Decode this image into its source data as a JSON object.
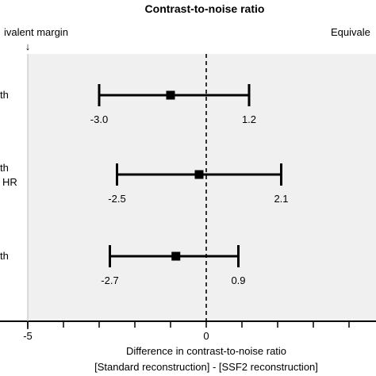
{
  "chart_data": {
    "type": "forest",
    "title": "Contrast-to-noise ratio",
    "xlabel_line1": "Difference in contrast-to-noise ratio",
    "xlabel_line2": "[Standard reconstruction] - [SSF2 reconstruction]",
    "margin_left_label": "ivalent margin",
    "margin_left_arrow": "↓",
    "margin_right_label": "Equivale",
    "xlim": [
      -5,
      4.5
    ],
    "xticks": [
      -5,
      0
    ],
    "tick_labels": [
      "-5",
      "0"
    ],
    "reference_line": 0,
    "rows": [
      {
        "row_label_1": "th",
        "row_label_2": "",
        "estimate": -1.0,
        "lower": -3.0,
        "upper": 1.2,
        "lower_label": "-3.0",
        "upper_label": "1.2"
      },
      {
        "row_label_1": "th",
        "row_label_2": "HR",
        "estimate": -0.2,
        "lower": -2.5,
        "upper": 2.1,
        "lower_label": "-2.5",
        "upper_label": "2.1"
      },
      {
        "row_label_1": "th",
        "row_label_2": "",
        "estimate": -0.85,
        "lower": -2.7,
        "upper": 0.9,
        "lower_label": "-2.7",
        "upper_label": "0.9"
      }
    ],
    "colors": {
      "panel": "#f0f0f0",
      "ink": "#000000"
    }
  }
}
